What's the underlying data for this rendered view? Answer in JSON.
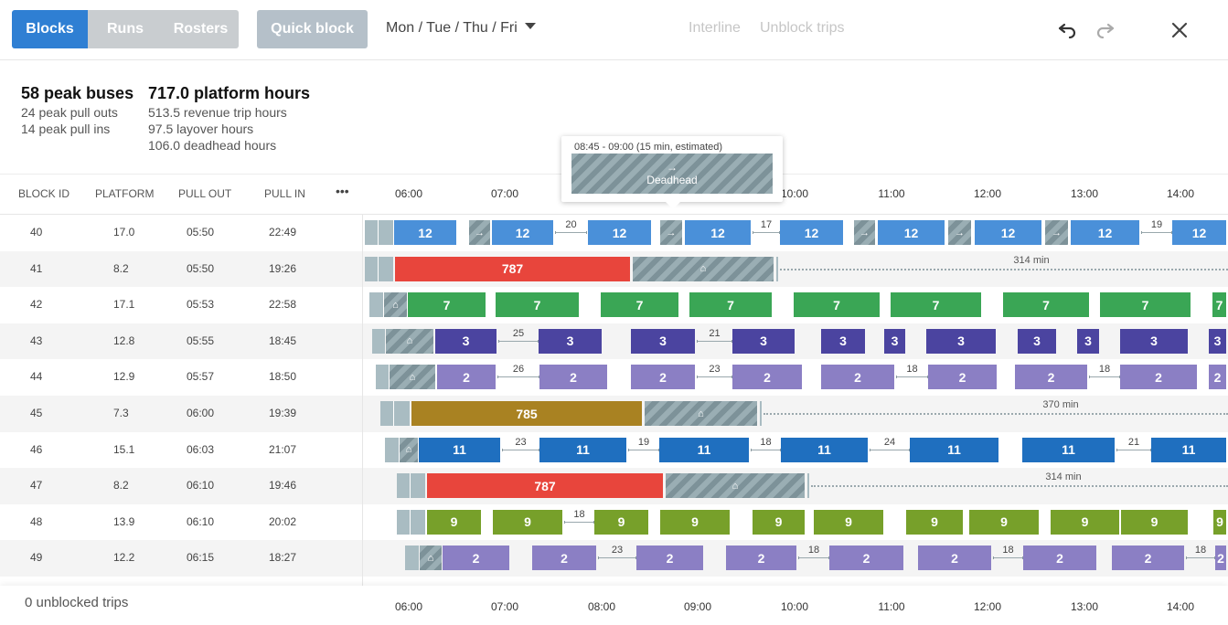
{
  "toolbar": {
    "tabs": [
      {
        "label": "Blocks",
        "active": true
      },
      {
        "label": "Runs",
        "active": false
      },
      {
        "label": "Rosters",
        "active": false
      }
    ],
    "quick_block": "Quick block",
    "day_filter": "Mon / Tue / Thu / Fri",
    "interline": "Interline",
    "unblock_trips": "Unblock trips",
    "icons": [
      "undo-icon",
      "redo-icon",
      "close-icon"
    ]
  },
  "stats": {
    "peak_buses": "58 peak buses",
    "peak_pull_outs": "24 peak pull outs",
    "peak_pull_ins": "14 peak pull ins",
    "platform_hours": "717.0 platform hours",
    "revenue_hours": "513.5 revenue trip hours",
    "layover_hours": "97.5 layover hours",
    "deadhead_hours": "106.0 deadhead hours"
  },
  "table": {
    "columns": [
      "BLOCK ID",
      "PLATFORM",
      "PULL OUT",
      "PULL IN"
    ],
    "more": "•••",
    "rows": [
      {
        "id": "40",
        "platform": "17.0",
        "pull_out": "05:50",
        "pull_in": "22:49"
      },
      {
        "id": "41",
        "platform": "8.2",
        "pull_out": "05:50",
        "pull_in": "19:26"
      },
      {
        "id": "42",
        "platform": "17.1",
        "pull_out": "05:53",
        "pull_in": "22:58"
      },
      {
        "id": "43",
        "platform": "12.8",
        "pull_out": "05:55",
        "pull_in": "18:45"
      },
      {
        "id": "44",
        "platform": "12.9",
        "pull_out": "05:57",
        "pull_in": "18:50"
      },
      {
        "id": "45",
        "platform": "7.3",
        "pull_out": "06:00",
        "pull_in": "19:39"
      },
      {
        "id": "46",
        "platform": "15.1",
        "pull_out": "06:03",
        "pull_in": "21:07"
      },
      {
        "id": "47",
        "platform": "8.2",
        "pull_out": "06:10",
        "pull_in": "19:46"
      },
      {
        "id": "48",
        "platform": "13.9",
        "pull_out": "06:10",
        "pull_in": "20:02"
      },
      {
        "id": "49",
        "platform": "12.2",
        "pull_out": "06:15",
        "pull_in": "18:27"
      }
    ]
  },
  "timeline": {
    "hours": [
      "06:00",
      "07:00",
      "08:00",
      "09:00",
      "10:00",
      "11:00",
      "12:00",
      "13:00",
      "14:00"
    ]
  },
  "route_colors": {
    "12": "#4a90d9",
    "787": "#e8453c",
    "7": "#3aa655",
    "3": "#4b44a0",
    "2": "#8b7fc4",
    "785": "#a98222",
    "11": "#1f6fbf",
    "9": "#77a02a"
  },
  "gantt": [
    {
      "trips": [
        {
          "g": [
            399,
            431
          ]
        },
        {
          "b": [
            431,
            501
          ],
          "r": "12"
        },
        {
          "d": [
            513,
            537
          ],
          "t": "→"
        },
        {
          "b": [
            538,
            607
          ],
          "r": "12"
        },
        {
          "l": [
            607,
            642
          ],
          "n": "20"
        },
        {
          "b": [
            643,
            714
          ],
          "r": "12"
        },
        {
          "d": [
            722,
            747
          ],
          "t": "→"
        },
        {
          "b": [
            749,
            823
          ],
          "r": "12"
        },
        {
          "l": [
            823,
            853
          ],
          "n": "17"
        },
        {
          "b": [
            853,
            924
          ],
          "r": "12"
        },
        {
          "d": [
            934,
            958
          ],
          "t": "→"
        },
        {
          "b": [
            960,
            1035
          ],
          "r": "12"
        },
        {
          "d": [
            1037,
            1063
          ],
          "t": "→"
        },
        {
          "b": [
            1066,
            1141
          ],
          "r": "12"
        },
        {
          "d": [
            1143,
            1169
          ],
          "t": "→"
        },
        {
          "b": [
            1171,
            1248
          ],
          "r": "12"
        },
        {
          "l": [
            1248,
            1282
          ],
          "n": "19"
        },
        {
          "b": [
            1282,
            1343
          ],
          "r": "12"
        }
      ]
    },
    {
      "trips": [
        {
          "g": [
            399,
            431
          ]
        },
        {
          "b": [
            432,
            691
          ],
          "r": "787"
        },
        {
          "d": [
            692,
            847
          ],
          "t": "⌂"
        },
        {
          "g": [
            849,
            852
          ]
        },
        {
          "dots": [
            853,
            1343
          ],
          "m": "314 min",
          "mx": 1128
        }
      ]
    },
    {
      "trips": [
        {
          "g": [
            404,
            420
          ]
        },
        {
          "d": [
            420,
            446
          ],
          "t": "⌂"
        },
        {
          "b": [
            446,
            533
          ],
          "r": "7"
        },
        {
          "b": [
            542,
            635
          ],
          "r": "7"
        },
        {
          "b": [
            657,
            744
          ],
          "r": "7"
        },
        {
          "b": [
            754,
            846
          ],
          "r": "7"
        },
        {
          "b": [
            868,
            964
          ],
          "r": "7"
        },
        {
          "b": [
            974,
            1075
          ],
          "r": "7"
        },
        {
          "b": [
            1097,
            1193
          ],
          "r": "7"
        },
        {
          "b": [
            1203,
            1304
          ],
          "r": "7"
        },
        {
          "b": [
            1326,
            1343
          ],
          "r": "7"
        }
      ]
    },
    {
      "trips": [
        {
          "g": [
            407,
            422
          ]
        },
        {
          "d": [
            422,
            475
          ],
          "t": "⌂"
        },
        {
          "b": [
            476,
            545
          ],
          "r": "3"
        },
        {
          "l": [
            545,
            589
          ],
          "n": "25"
        },
        {
          "b": [
            589,
            660
          ],
          "r": "3"
        },
        {
          "b": [
            690,
            762
          ],
          "r": "3"
        },
        {
          "l": [
            762,
            801
          ],
          "n": "21"
        },
        {
          "b": [
            801,
            871
          ],
          "r": "3"
        },
        {
          "b": [
            898,
            948
          ],
          "r": "3"
        },
        {
          "b": [
            967,
            992
          ],
          "r": "3"
        },
        {
          "b": [
            1013,
            1091
          ],
          "r": "3"
        },
        {
          "b": [
            1113,
            1157
          ],
          "r": "3"
        },
        {
          "b": [
            1178,
            1204
          ],
          "r": "3"
        },
        {
          "b": [
            1225,
            1301
          ],
          "r": "3"
        },
        {
          "b": [
            1322,
            1343
          ],
          "r": "3"
        }
      ]
    },
    {
      "trips": [
        {
          "g": [
            411,
            426
          ]
        },
        {
          "d": [
            426,
            477
          ],
          "t": "⌂"
        },
        {
          "b": [
            478,
            544
          ],
          "r": "2"
        },
        {
          "l": [
            544,
            590
          ],
          "n": "26"
        },
        {
          "b": [
            590,
            666
          ],
          "r": "2"
        },
        {
          "b": [
            690,
            762
          ],
          "r": "2"
        },
        {
          "l": [
            762,
            801
          ],
          "n": "23"
        },
        {
          "b": [
            801,
            879
          ],
          "r": "2"
        },
        {
          "b": [
            898,
            980
          ],
          "r": "2"
        },
        {
          "l": [
            980,
            1015
          ],
          "n": "18"
        },
        {
          "b": [
            1015,
            1092
          ],
          "r": "2"
        },
        {
          "b": [
            1110,
            1191
          ],
          "r": "2"
        },
        {
          "l": [
            1191,
            1225
          ],
          "n": "18"
        },
        {
          "b": [
            1225,
            1311
          ],
          "r": "2"
        },
        {
          "b": [
            1322,
            1343
          ],
          "r": "2"
        }
      ]
    },
    {
      "trips": [
        {
          "g": [
            416,
            449
          ]
        },
        {
          "b": [
            450,
            704
          ],
          "r": "785"
        },
        {
          "d": [
            705,
            829
          ],
          "t": "⌂"
        },
        {
          "g": [
            831,
            834
          ]
        },
        {
          "dots": [
            835,
            1343
          ],
          "m": "370 min",
          "mx": 1160
        }
      ]
    },
    {
      "trips": [
        {
          "g": [
            421,
            437
          ]
        },
        {
          "d": [
            437,
            458
          ],
          "t": "⌂"
        },
        {
          "b": [
            458,
            549
          ],
          "r": "11"
        },
        {
          "l": [
            549,
            590
          ],
          "n": "23"
        },
        {
          "b": [
            590,
            687
          ],
          "r": "11"
        },
        {
          "l": [
            687,
            721
          ],
          "n": "19"
        },
        {
          "b": [
            721,
            821
          ],
          "r": "11"
        },
        {
          "l": [
            821,
            854
          ],
          "n": "18"
        },
        {
          "b": [
            854,
            951
          ],
          "r": "11"
        },
        {
          "l": [
            951,
            995
          ],
          "n": "24"
        },
        {
          "b": [
            995,
            1094
          ],
          "r": "11"
        },
        {
          "b": [
            1118,
            1221
          ],
          "r": "11"
        },
        {
          "l": [
            1221,
            1259
          ],
          "n": "21"
        },
        {
          "b": [
            1259,
            1343
          ],
          "r": "11"
        }
      ]
    },
    {
      "trips": [
        {
          "g": [
            434,
            466
          ]
        },
        {
          "b": [
            467,
            727
          ],
          "r": "787"
        },
        {
          "d": [
            728,
            881
          ],
          "t": "⌂"
        },
        {
          "g": [
            883,
            886
          ]
        },
        {
          "dots": [
            887,
            1343
          ],
          "m": "314 min",
          "mx": 1163
        }
      ]
    },
    {
      "trips": [
        {
          "g": [
            434,
            466
          ]
        },
        {
          "b": [
            467,
            528
          ],
          "r": "9"
        },
        {
          "b": [
            539,
            617
          ],
          "r": "9"
        },
        {
          "l": [
            617,
            650
          ],
          "n": "18"
        },
        {
          "b": [
            650,
            711
          ],
          "r": "9"
        },
        {
          "b": [
            722,
            800
          ],
          "r": "9"
        },
        {
          "b": [
            823,
            882
          ],
          "r": "9"
        },
        {
          "b": [
            890,
            968
          ],
          "r": "9"
        },
        {
          "b": [
            991,
            1055
          ],
          "r": "9"
        },
        {
          "b": [
            1060,
            1138
          ],
          "r": "9"
        },
        {
          "b": [
            1149,
            1226
          ],
          "r": "9"
        },
        {
          "b": [
            1226,
            1301
          ],
          "r": "9"
        },
        {
          "b": [
            1327,
            1343
          ],
          "r": "9"
        }
      ]
    },
    {
      "trips": [
        {
          "g": [
            443,
            459
          ]
        },
        {
          "d": [
            459,
            484
          ],
          "t": "⌂"
        },
        {
          "b": [
            484,
            559
          ],
          "r": "2"
        },
        {
          "b": [
            582,
            654
          ],
          "r": "2"
        },
        {
          "l": [
            654,
            696
          ],
          "n": "23"
        },
        {
          "b": [
            696,
            771
          ],
          "r": "2"
        },
        {
          "b": [
            794,
            873
          ],
          "r": "2"
        },
        {
          "l": [
            873,
            907
          ],
          "n": "18"
        },
        {
          "b": [
            907,
            990
          ],
          "r": "2"
        },
        {
          "b": [
            1004,
            1086
          ],
          "r": "2"
        },
        {
          "l": [
            1086,
            1119
          ],
          "n": "18"
        },
        {
          "b": [
            1119,
            1201
          ],
          "r": "2"
        },
        {
          "b": [
            1216,
            1297
          ],
          "r": "2"
        },
        {
          "l": [
            1297,
            1329
          ],
          "n": "18"
        },
        {
          "b": [
            1329,
            1343
          ],
          "r": "2"
        }
      ]
    }
  ],
  "tooltip": {
    "time": "08:45 - 09:00 (15 min, estimated)",
    "label": "Deadhead",
    "arrow": "→"
  },
  "footer": {
    "unblocked": "0 unblocked trips"
  }
}
